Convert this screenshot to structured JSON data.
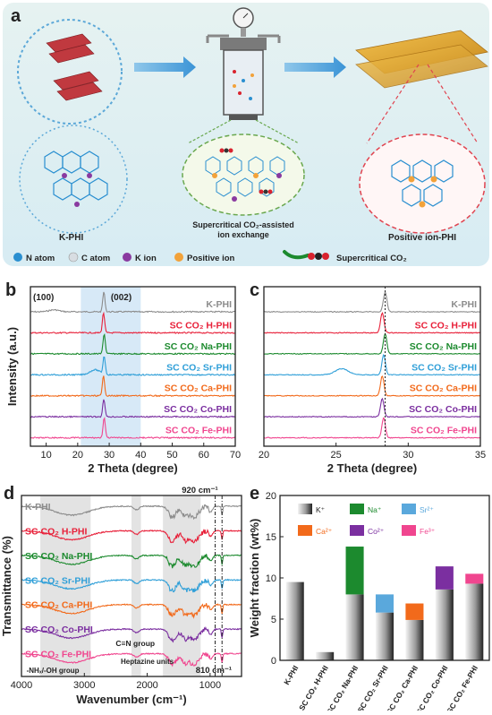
{
  "panel_a": {
    "letter": "a",
    "kphi_label": "K-PHI",
    "middle_label_line1": "Supercritical CO₂-assisted",
    "middle_label_line2": "ion exchange",
    "right_label": "Positive ion-PHI",
    "legend": [
      {
        "label": "N atom",
        "color": "#2a8fd0"
      },
      {
        "label": "C atom",
        "color": "#d8dde2"
      },
      {
        "label": "K ion",
        "color": "#8a3aa0"
      },
      {
        "label": "Positive ion",
        "color": "#f2a23a"
      },
      {
        "label": "Supercritical CO₂",
        "color": "#d9232e"
      }
    ]
  },
  "chart_data": [
    {
      "panel": "b",
      "type": "line",
      "xlabel": "2 Theta (degree)",
      "ylabel": "Intensity (a.u.)",
      "xlim": [
        5,
        70
      ],
      "xticks": [
        10,
        20,
        30,
        40,
        50,
        60,
        70
      ],
      "highlight_range": [
        21,
        40
      ],
      "annotations": [
        "(100)",
        "(002)"
      ],
      "series": [
        {
          "name": "K-PHI",
          "color": "#8c8c8c",
          "peaks": [
            {
              "x": 12.5,
              "h": 0.1
            },
            {
              "x": 28.3,
              "h": 1.0
            }
          ]
        },
        {
          "name": "SC CO₂ H-PHI",
          "color": "#e8213a",
          "peaks": [
            {
              "x": 28.2,
              "h": 1.0
            }
          ]
        },
        {
          "name": "SC CO₂ Na-PHI",
          "color": "#1c8a2e",
          "peaks": [
            {
              "x": 28.4,
              "h": 1.0
            }
          ]
        },
        {
          "name": "SC CO₂ Sr-PHI",
          "color": "#2f9fd8",
          "peaks": [
            {
              "x": 25.5,
              "h": 0.25
            },
            {
              "x": 28.4,
              "h": 0.9
            }
          ]
        },
        {
          "name": "SC CO₂ Ca-PHI",
          "color": "#f26a1b",
          "peaks": [
            {
              "x": 28.2,
              "h": 1.0
            }
          ]
        },
        {
          "name": "SC CO₂ Co-PHI",
          "color": "#7b2fa0",
          "peaks": [
            {
              "x": 28.3,
              "h": 0.9
            }
          ]
        },
        {
          "name": "SC CO₂ Fe-PHI",
          "color": "#f0468f",
          "peaks": [
            {
              "x": 28.4,
              "h": 1.0
            }
          ]
        }
      ]
    },
    {
      "panel": "c",
      "type": "line",
      "xlabel": "2 Theta (degree)",
      "xlim": [
        20,
        35
      ],
      "xticks": [
        20,
        25,
        30,
        35
      ],
      "reference_x": 28.4,
      "series": [
        {
          "name": "K-PHI",
          "color": "#8c8c8c",
          "peaks": [
            {
              "x": 28.4,
              "h": 1.0
            }
          ]
        },
        {
          "name": "SC CO₂ H-PHI",
          "color": "#e8213a",
          "peaks": [
            {
              "x": 28.2,
              "h": 1.0
            }
          ]
        },
        {
          "name": "SC CO₂ Na-PHI",
          "color": "#1c8a2e",
          "peaks": [
            {
              "x": 28.4,
              "h": 1.0
            }
          ]
        },
        {
          "name": "SC CO₂ Sr-PHI",
          "color": "#2f9fd8",
          "peaks": [
            {
              "x": 25.4,
              "h": 0.3
            },
            {
              "x": 28.3,
              "h": 1.0
            }
          ]
        },
        {
          "name": "SC CO₂ Ca-PHI",
          "color": "#f26a1b",
          "peaks": [
            {
              "x": 28.2,
              "h": 1.0
            }
          ]
        },
        {
          "name": "SC CO₂ Co-PHI",
          "color": "#7b2fa0",
          "peaks": [
            {
              "x": 28.2,
              "h": 0.9
            }
          ]
        },
        {
          "name": "SC CO₂ Fe-PHI",
          "color": "#f0468f",
          "peaks": [
            {
              "x": 28.3,
              "h": 1.0
            }
          ]
        }
      ]
    },
    {
      "panel": "d",
      "type": "line",
      "xlabel": "Wavenumber (cm⁻¹)",
      "ylabel": "Transmittance (%)",
      "xlim": [
        4000,
        500
      ],
      "xticks": [
        4000,
        3000,
        2000,
        1000
      ],
      "shaded_ranges": [
        [
          3700,
          2900
        ],
        [
          2250,
          2100
        ],
        [
          1750,
          1150
        ]
      ],
      "reference_lines": [
        920,
        810
      ],
      "annotations": [
        "920 cm⁻¹",
        "810 cm⁻¹",
        "-NHₓ/-OH group",
        "C≡N group",
        "Heptazine units"
      ],
      "series": [
        {
          "name": "K-PHI",
          "color": "#8c8c8c"
        },
        {
          "name": "SC CO₂ H-PHI",
          "color": "#e8213a"
        },
        {
          "name": "SC CO₂ Na-PHI",
          "color": "#1c8a2e"
        },
        {
          "name": "SC CO₂ Sr-PHI",
          "color": "#2f9fd8"
        },
        {
          "name": "SC CO₂ Ca-PHI",
          "color": "#f26a1b"
        },
        {
          "name": "SC CO₂ Co-PHI",
          "color": "#7b2fa0"
        },
        {
          "name": "SC CO₂ Fe-PHI",
          "color": "#f0468f"
        }
      ]
    },
    {
      "panel": "e",
      "type": "bar",
      "ylabel": "Weight fraction (wt%)",
      "ylim": [
        0,
        20
      ],
      "yticks": [
        0,
        5,
        10,
        15,
        20
      ],
      "categories": [
        "K-PHI",
        "SC CO₂ H-PHI",
        "SC CO₂ Na-PHI",
        "SC CO₂ Sr-PHI",
        "SC CO₂ Ca-PHI",
        "SC CO₂ Co-PHI",
        "SC CO₂ Fe-PHI"
      ],
      "series": [
        {
          "name": "K⁺",
          "color": "#808080",
          "values": [
            9.5,
            1.0,
            8.0,
            5.8,
            4.9,
            8.6,
            9.3
          ]
        },
        {
          "name": "Positive ion",
          "values": [
            0,
            0,
            5.8,
            2.2,
            2.0,
            2.8,
            1.2
          ],
          "colors": [
            "#1c8a2e",
            "#1c8a2e",
            "#1c8a2e",
            "#5aa8dc",
            "#f26a1b",
            "#7b2fa0",
            "#f0468f"
          ]
        }
      ],
      "legend": [
        {
          "label": "K⁺",
          "color": "#808080"
        },
        {
          "label": "Na⁺",
          "color": "#1c8a2e"
        },
        {
          "label": "Sr²⁺",
          "color": "#5aa8dc"
        },
        {
          "label": "Ca²⁺",
          "color": "#f26a1b"
        },
        {
          "label": "Co²⁺",
          "color": "#7b2fa0"
        },
        {
          "label": "Fe³⁺",
          "color": "#f0468f"
        }
      ]
    }
  ]
}
